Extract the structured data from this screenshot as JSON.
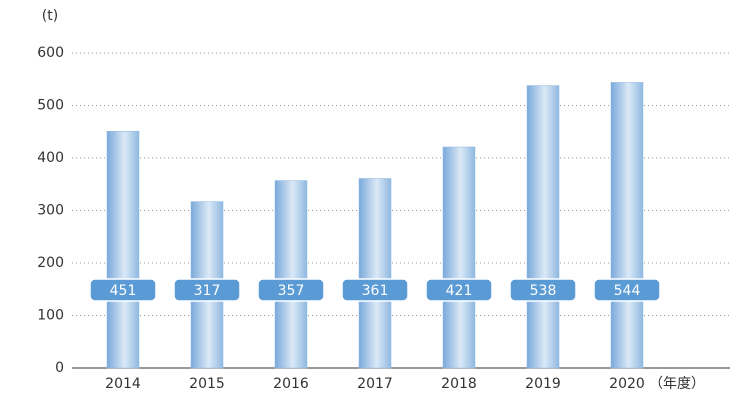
{
  "chart_data": {
    "type": "bar",
    "y_label": "(t)",
    "x_label": "（年度）",
    "categories": [
      "2014",
      "2015",
      "2016",
      "2017",
      "2018",
      "2019",
      "2020"
    ],
    "values": [
      451,
      317,
      357,
      361,
      421,
      538,
      544
    ],
    "color": "#8fb8e0",
    "label_color": "#5b9bd5",
    "ylim": [
      0,
      600
    ],
    "yticks": [
      0,
      100,
      200,
      300,
      400,
      500,
      600
    ],
    "grid": true
  }
}
